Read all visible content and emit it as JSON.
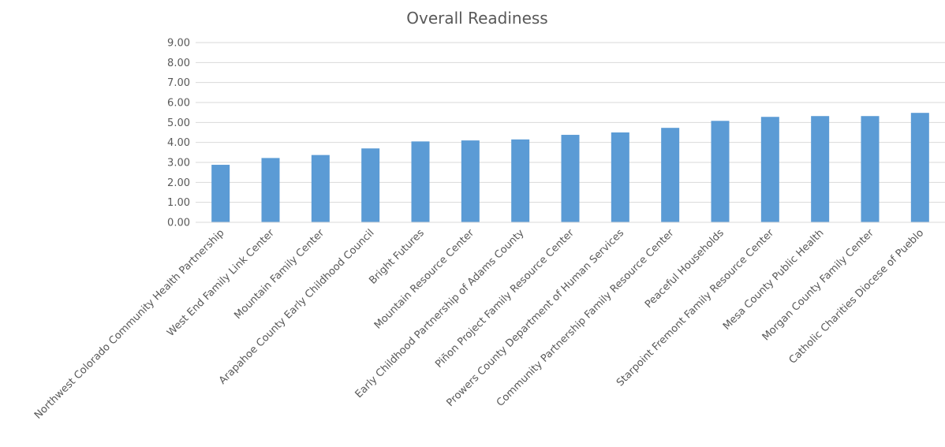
{
  "chart_data": {
    "type": "bar",
    "title": "Overall Readiness",
    "xlabel": "",
    "ylabel": "",
    "ylim": [
      0,
      9
    ],
    "ytick_step": 1,
    "ytick_decimals": 2,
    "grid": true,
    "legend": "none",
    "bar_color": "#5b9bd5",
    "categories": [
      "Northwest Colorado Community Health Partnership",
      "West End Family Link Center",
      "Mountain Family Center",
      "Arapahoe County Early Childhood Council",
      "Bright Futures",
      "Mountain Resource Center",
      "Early Childhood Partnership of Adams County",
      "Piñon Project Family Resource Center",
      "Prowers County Department of Human Services",
      "Community Partnership Family Resource Center",
      "Peaceful Households",
      "Starpoint Fremont Family Resource Center",
      "Mesa County Public Health",
      "Morgan County Family Center",
      "Catholic Charities Diocese of Pueblo"
    ],
    "values": [
      2.88,
      3.22,
      3.37,
      3.7,
      4.05,
      4.1,
      4.15,
      4.38,
      4.5,
      4.73,
      5.08,
      5.28,
      5.32,
      5.32,
      5.48
    ]
  }
}
